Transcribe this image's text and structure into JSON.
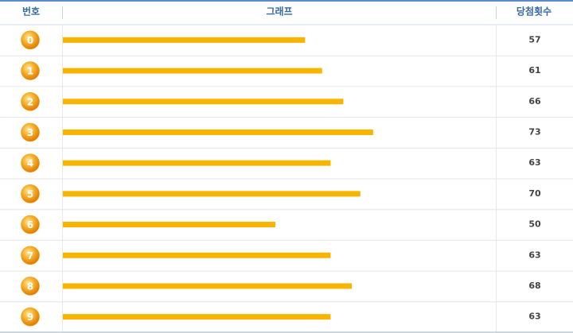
{
  "table": {
    "headers": [
      "번호",
      "그래프",
      "당첨횟수"
    ],
    "rows": [
      {
        "number": 0,
        "count": 57
      },
      {
        "number": 1,
        "count": 61
      },
      {
        "number": 2,
        "count": 66
      },
      {
        "number": 3,
        "count": 73
      },
      {
        "number": 4,
        "count": 63
      },
      {
        "number": 5,
        "count": 70
      },
      {
        "number": 6,
        "count": 50
      },
      {
        "number": 7,
        "count": 63
      },
      {
        "number": 8,
        "count": 68
      },
      {
        "number": 9,
        "count": 63
      }
    ]
  }
}
